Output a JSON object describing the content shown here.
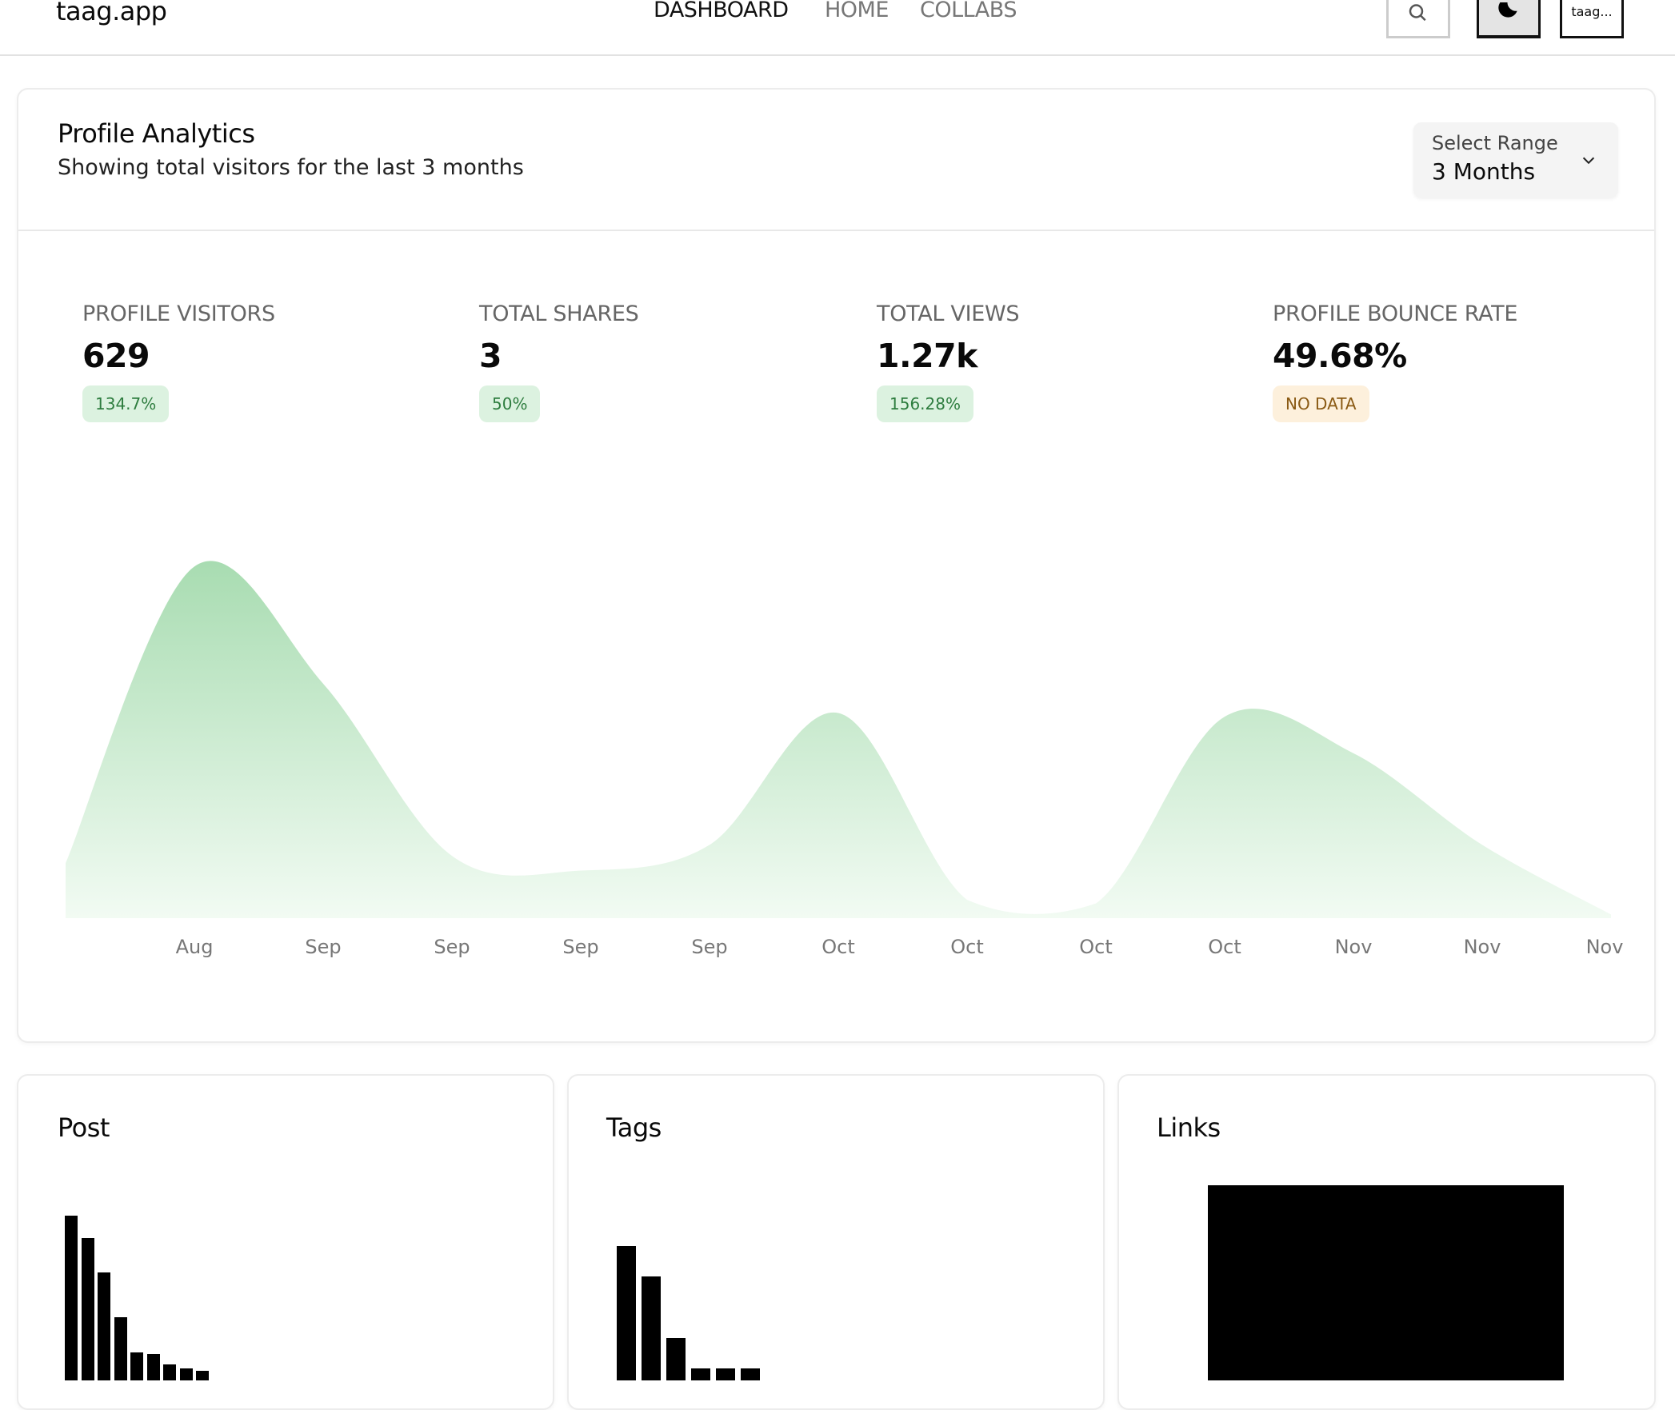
{
  "header": {
    "logo": "taag.app",
    "nav": [
      {
        "label": "DASHBOARD",
        "active": true
      },
      {
        "label": "HOME",
        "active": false
      },
      {
        "label": "COLLABS",
        "active": false
      }
    ],
    "avatar_text": "taag...",
    "icons": [
      "search-icon",
      "moon-icon"
    ]
  },
  "analytics": {
    "title": "Profile Analytics",
    "subtitle": "Showing total visitors for the last 3 months",
    "range": {
      "label": "Select Range",
      "value": "3 Months"
    },
    "stats": [
      {
        "label": "PROFILE VISITORS",
        "value": "629",
        "badge": "134.7%",
        "badge_type": "positive"
      },
      {
        "label": "TOTAL SHARES",
        "value": "3",
        "badge": "50%",
        "badge_type": "positive"
      },
      {
        "label": "TOTAL VIEWS",
        "value": "1.27k",
        "badge": "156.28%",
        "badge_type": "positive"
      },
      {
        "label": "PROFILE BOUNCE RATE",
        "value": "49.68%",
        "badge": "NO DATA",
        "badge_type": "neutral"
      }
    ]
  },
  "colors": {
    "area_top": "#a8dcb1",
    "area_bottom": "#f2fbf3",
    "badge_positive_bg": "#dcf2e0",
    "badge_positive_text": "#2e7d3f",
    "badge_neutral_bg": "#fdf0dc",
    "badge_neutral_text": "#8a5a14"
  },
  "chart_data": [
    {
      "type": "area",
      "x_labels": [
        "Aug",
        "Sep",
        "Sep",
        "Sep",
        "Sep",
        "Oct",
        "Oct",
        "Oct",
        "Oct",
        "Nov",
        "Nov",
        "Nov"
      ],
      "values": [
        15,
        96,
        64,
        17,
        13,
        20,
        56,
        5,
        4,
        55,
        45,
        20,
        1
      ],
      "ylim": [
        0,
        100
      ],
      "grid": false
    },
    {
      "type": "bar",
      "title": "Post",
      "values": [
        196,
        168,
        125,
        69,
        25,
        23,
        10,
        5,
        2
      ]
    },
    {
      "type": "bar",
      "title": "Tags",
      "values": [
        158,
        120,
        43,
        5,
        5,
        5
      ]
    },
    {
      "type": "bar",
      "title": "Links",
      "values": [
        234
      ]
    }
  ]
}
